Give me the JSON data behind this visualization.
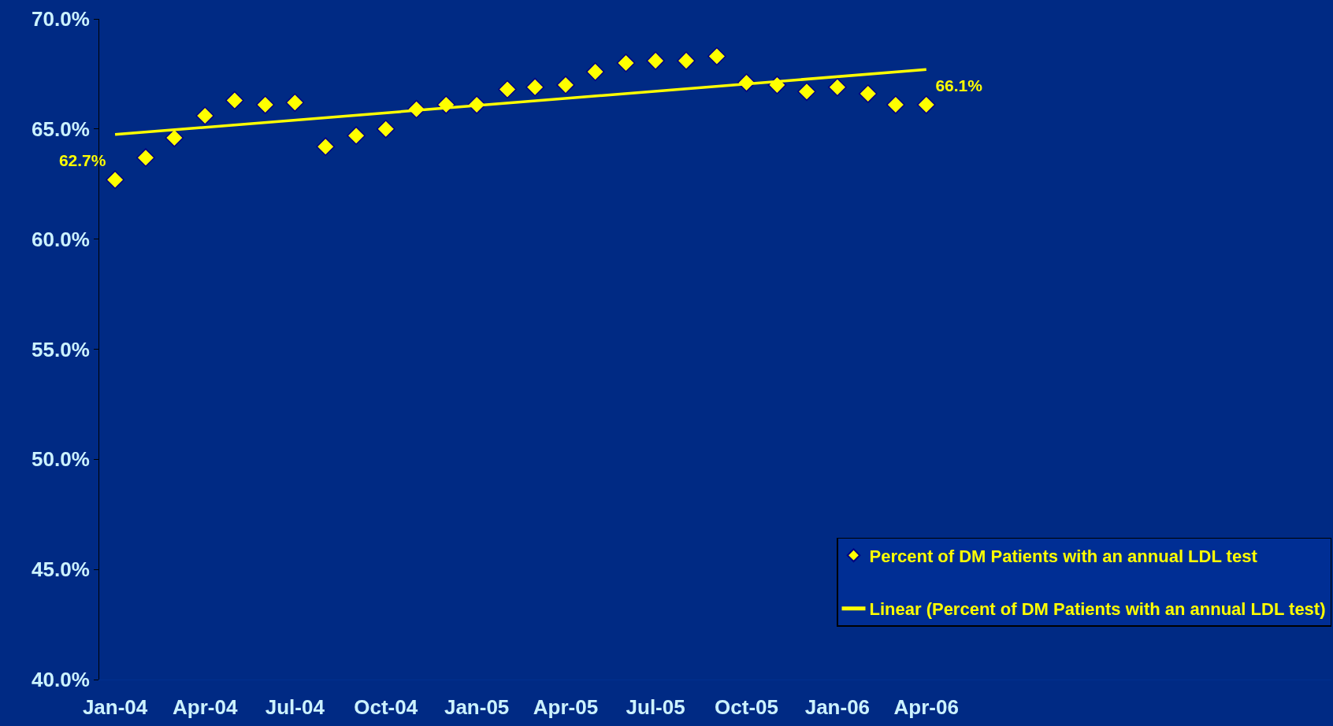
{
  "chart_data": {
    "type": "scatter",
    "x": [
      "2004-01",
      "2004-02",
      "2004-03",
      "2004-04",
      "2004-05",
      "2004-06",
      "2004-07",
      "2004-08",
      "2004-09",
      "2004-10",
      "2004-11",
      "2004-12",
      "2005-01",
      "2005-02",
      "2005-03",
      "2005-04",
      "2005-05",
      "2005-06",
      "2005-07",
      "2005-08",
      "2005-09",
      "2005-10",
      "2005-11",
      "2005-12",
      "2006-01",
      "2006-02",
      "2006-03",
      "2006-04"
    ],
    "series": [
      {
        "name": "Percent of DM Patients with an annual LDL test",
        "color": "#ffff00",
        "marker": "diamond",
        "values": [
          62.7,
          63.7,
          64.6,
          65.6,
          66.3,
          66.1,
          66.2,
          64.2,
          64.7,
          65.0,
          65.9,
          66.1,
          66.1,
          66.8,
          66.9,
          67.0,
          67.6,
          68.0,
          68.1,
          68.1,
          68.3,
          67.1,
          67.0,
          66.7,
          66.9,
          66.6,
          66.1,
          66.1
        ],
        "value_labels": [
          "62.7%",
          null,
          null,
          null,
          null,
          null,
          null,
          null,
          null,
          null,
          null,
          null,
          null,
          null,
          null,
          null,
          null,
          null,
          null,
          null,
          null,
          null,
          null,
          null,
          null,
          null,
          null,
          "66.1%"
        ]
      },
      {
        "name": "Linear (Percent of DM Patients with an annual LDL test)",
        "type": "line",
        "color": "#ffff00",
        "line_style": "solid",
        "x": [
          "2004-01",
          "2006-04"
        ],
        "values": [
          64.75,
          67.7
        ]
      }
    ],
    "xlim": [
      "2003-12-16",
      "2007-05-16"
    ],
    "xticks": [
      {
        "value": "2004-01",
        "label": "Jan-04"
      },
      {
        "value": "2004-04",
        "label": "Apr-04"
      },
      {
        "value": "2004-07",
        "label": "Jul-04"
      },
      {
        "value": "2004-10",
        "label": "Oct-04"
      },
      {
        "value": "2005-01",
        "label": "Jan-05"
      },
      {
        "value": "2005-04",
        "label": "Apr-05"
      },
      {
        "value": "2005-07",
        "label": "Jul-05"
      },
      {
        "value": "2005-10",
        "label": "Oct-05"
      },
      {
        "value": "2006-01",
        "label": "Jan-06"
      },
      {
        "value": "2006-04",
        "label": "Apr-06"
      }
    ],
    "ylim": [
      40,
      70
    ],
    "yticks": [
      {
        "value": 40,
        "label": "40.0%"
      },
      {
        "value": 45,
        "label": "45.0%"
      },
      {
        "value": 50,
        "label": "50.0%"
      },
      {
        "value": 55,
        "label": "55.0%"
      },
      {
        "value": 60,
        "label": "60.0%"
      },
      {
        "value": 65,
        "label": "65.0%"
      },
      {
        "value": 70,
        "label": "70.0%"
      }
    ],
    "grid": false,
    "legend": "bottom right"
  }
}
